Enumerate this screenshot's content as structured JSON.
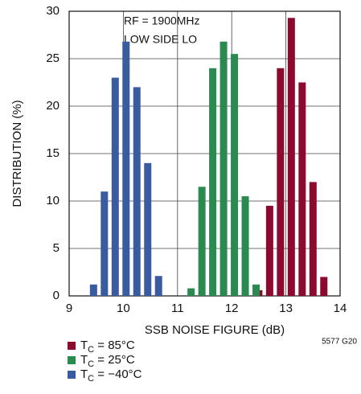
{
  "chart_data": {
    "type": "bar",
    "annotation": [
      "RF = 1900MHz",
      "LOW SIDE LO"
    ],
    "xlabel": "SSB NOISE FIGURE (dB)",
    "ylabel": "DISTRIBUTION (%)",
    "note": "5577 G20",
    "xlim": [
      9,
      14
    ],
    "ylim": [
      0,
      30
    ],
    "xticks": [
      9,
      10,
      11,
      12,
      13,
      14
    ],
    "yticks": [
      0,
      5,
      10,
      15,
      20,
      25,
      30
    ],
    "grid": true,
    "series": [
      {
        "name": "TC = 85°C",
        "color": "#8b0a2e",
        "x": [
          12.5,
          12.7,
          12.9,
          13.1,
          13.3,
          13.5,
          13.7
        ],
        "values": [
          0.6,
          9.5,
          24,
          29.3,
          22.5,
          12,
          2
        ]
      },
      {
        "name": "TC = 25°C",
        "color": "#2a8a4f",
        "x": [
          11.25,
          11.45,
          11.65,
          11.85,
          12.05,
          12.25,
          12.45
        ],
        "values": [
          0.8,
          11.5,
          24,
          26.8,
          25.5,
          10.5,
          1.2
        ]
      },
      {
        "name": "TC = −40°C",
        "color": "#3a5ba0",
        "x": [
          9.45,
          9.65,
          9.85,
          10.05,
          10.25,
          10.45,
          10.65
        ],
        "values": [
          1.2,
          11,
          23,
          26.8,
          22,
          14,
          2.1
        ]
      }
    ]
  }
}
